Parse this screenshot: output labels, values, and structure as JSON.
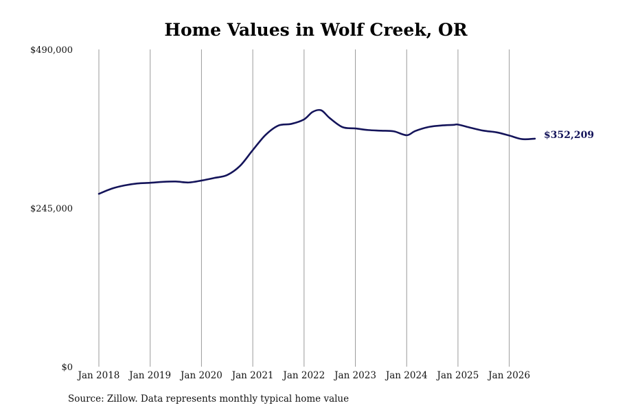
{
  "chart_data": {
    "type": "line",
    "title": "Home Values in Wolf Creek, OR",
    "xlabel": "",
    "ylabel": "",
    "ylim": [
      0,
      490000
    ],
    "xlim": [
      "2018-01",
      "2026-07"
    ],
    "y_ticks": [
      {
        "value": 0,
        "label": "$0"
      },
      {
        "value": 245000,
        "label": "$245,000"
      },
      {
        "value": 490000,
        "label": "$490,000"
      }
    ],
    "x_ticks": [
      {
        "date": "2018-01",
        "label": "Jan 2018"
      },
      {
        "date": "2019-01",
        "label": "Jan 2019"
      },
      {
        "date": "2020-01",
        "label": "Jan 2020"
      },
      {
        "date": "2021-01",
        "label": "Jan 2021"
      },
      {
        "date": "2022-01",
        "label": "Jan 2022"
      },
      {
        "date": "2023-01",
        "label": "Jan 2023"
      },
      {
        "date": "2024-01",
        "label": "Jan 2024"
      },
      {
        "date": "2025-01",
        "label": "Jan 2025"
      },
      {
        "date": "2026-01",
        "label": "Jan 2026"
      }
    ],
    "grid": "vertical",
    "legend": "none",
    "line_color": "#14145a",
    "end_label": "$352,209",
    "series": [
      {
        "x": [
          "2018-01",
          "2018-04",
          "2018-07",
          "2018-10",
          "2019-01",
          "2019-04",
          "2019-07",
          "2019-10",
          "2020-01",
          "2020-04",
          "2020-07",
          "2020-10",
          "2021-01",
          "2021-04",
          "2021-07",
          "2021-10",
          "2022-01",
          "2022-03",
          "2022-05",
          "2022-07",
          "2022-10",
          "2023-01",
          "2023-04",
          "2023-07",
          "2023-10",
          "2024-01",
          "2024-03",
          "2024-06",
          "2024-09",
          "2024-12",
          "2025-01",
          "2025-04",
          "2025-07",
          "2025-10",
          "2026-01",
          "2026-04",
          "2026-07"
        ],
        "y": [
          267000,
          275000,
          280000,
          283000,
          284000,
          285500,
          286000,
          284500,
          287500,
          291500,
          296000,
          310000,
          334500,
          358000,
          372500,
          375000,
          382000,
          393500,
          396000,
          384000,
          370000,
          368000,
          365500,
          364500,
          363500,
          357500,
          364000,
          370000,
          372500,
          373500,
          374000,
          369000,
          364500,
          362000,
          357000,
          351500,
          352209
        ]
      }
    ]
  },
  "source_note": "Source: Zillow. Data represents monthly typical home value"
}
